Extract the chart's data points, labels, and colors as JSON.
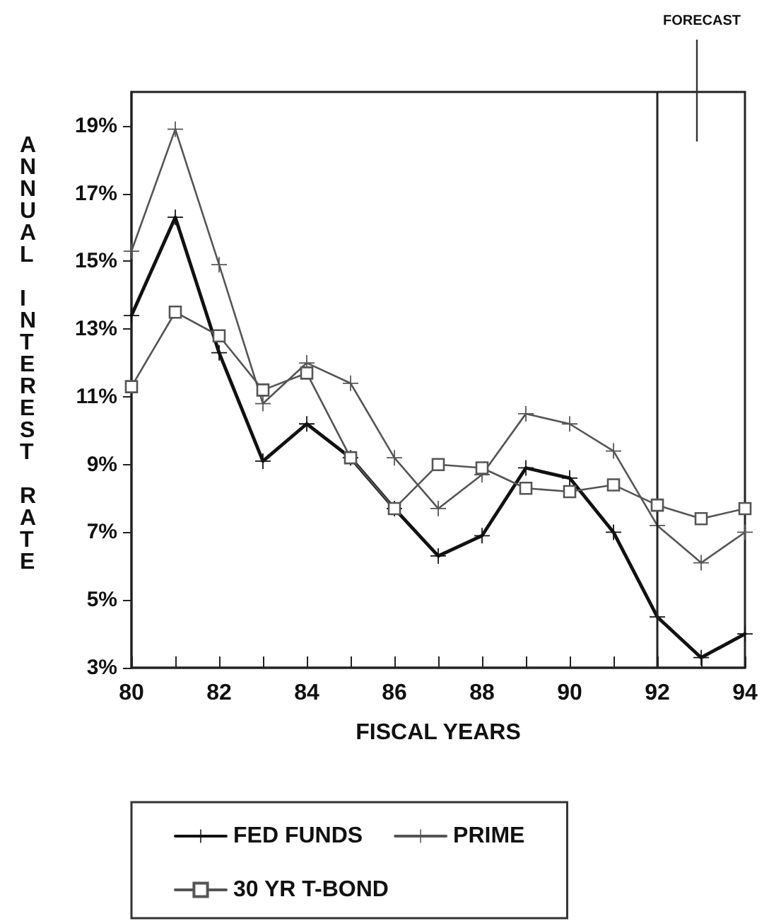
{
  "chart_data": {
    "type": "line",
    "xlabel": "FISCAL YEARS",
    "ylabel": "ANNUAL INTEREST RATE",
    "x": [
      80,
      81,
      82,
      83,
      84,
      85,
      86,
      87,
      88,
      89,
      90,
      91,
      92,
      93,
      94
    ],
    "series": [
      {
        "name": "FED FUNDS",
        "color": "#111111",
        "marker": "cross",
        "values": [
          13.4,
          16.3,
          12.3,
          9.1,
          10.2,
          9.2,
          7.7,
          6.3,
          6.9,
          8.9,
          8.6,
          7.0,
          4.5,
          3.3,
          4.0
        ]
      },
      {
        "name": "PRIME",
        "color": "#555555",
        "marker": "cross",
        "values": [
          15.3,
          18.9,
          14.9,
          10.8,
          12.0,
          11.4,
          9.2,
          7.7,
          8.7,
          10.5,
          10.2,
          9.4,
          7.2,
          6.1,
          7.0
        ]
      },
      {
        "name": "30 YR T-BOND",
        "color": "#555555",
        "marker": "square",
        "values": [
          11.3,
          13.5,
          12.8,
          11.2,
          11.7,
          9.2,
          7.7,
          9.0,
          8.9,
          8.3,
          8.2,
          8.4,
          7.8,
          7.4,
          7.7
        ]
      }
    ],
    "xlim": [
      80,
      94
    ],
    "xticks": [
      80,
      {
        "value": 81,
        "label": null
      },
      82,
      {
        "value": 83,
        "label": null
      },
      84,
      {
        "value": 85,
        "label": null
      },
      86,
      {
        "value": 87,
        "label": null
      },
      88,
      {
        "value": 89,
        "label": null
      },
      90,
      {
        "value": 91,
        "label": null
      },
      92,
      {
        "value": 93,
        "label": null
      },
      94
    ],
    "ylim": [
      3,
      20
    ],
    "yticks": [
      {
        "value": 3,
        "label": "3%"
      },
      {
        "value": 5,
        "label": "5%"
      },
      {
        "value": 7,
        "label": "7%"
      },
      {
        "value": 9,
        "label": "9%"
      },
      {
        "value": 11,
        "label": "11%"
      },
      {
        "value": 13,
        "label": "13%"
      },
      {
        "value": 15,
        "label": "15%"
      },
      {
        "value": 17,
        "label": "17%"
      },
      {
        "value": 19,
        "label": "19%"
      }
    ],
    "ref_lines": [
      {
        "axis": "x",
        "value": 92,
        "color": "#222222"
      }
    ],
    "annotations": [
      "FORECAST"
    ],
    "grid": false,
    "legend": "bottom"
  }
}
